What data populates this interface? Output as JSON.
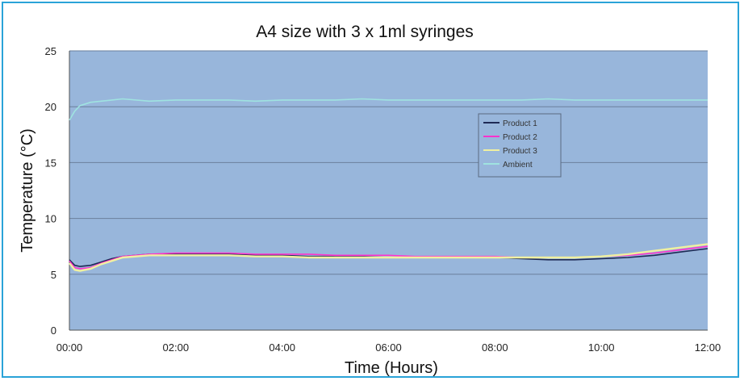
{
  "chart_data": {
    "type": "line",
    "title": "A4 size with 3 x 1ml syringes",
    "xlabel": "Time (Hours)",
    "ylabel": "Temperature (°C)",
    "ylim": [
      0,
      25
    ],
    "xlim": [
      0,
      12
    ],
    "y_ticks": [
      0,
      5,
      10,
      15,
      20,
      25
    ],
    "x_ticks": [
      0,
      2,
      4,
      6,
      8,
      10,
      12
    ],
    "x_tick_labels": [
      "00:00",
      "02:00",
      "04:00",
      "06:00",
      "08:00",
      "10:00",
      "12:00"
    ],
    "grid": "horizontal",
    "plot_background": "#98b6db",
    "legend_position": "center-right",
    "x": [
      0.0,
      0.1,
      0.2,
      0.4,
      0.6,
      0.8,
      1.0,
      1.5,
      2.0,
      2.5,
      3.0,
      3.5,
      4.0,
      4.5,
      5.0,
      5.5,
      6.0,
      6.5,
      7.0,
      7.5,
      8.0,
      8.5,
      9.0,
      9.5,
      10.0,
      10.5,
      11.0,
      11.5,
      12.0
    ],
    "series": [
      {
        "name": "Product 1",
        "color": "#1f2a55",
        "values": [
          6.3,
          5.8,
          5.7,
          5.8,
          6.1,
          6.4,
          6.6,
          6.8,
          6.8,
          6.8,
          6.8,
          6.7,
          6.7,
          6.6,
          6.6,
          6.6,
          6.5,
          6.5,
          6.5,
          6.5,
          6.5,
          6.4,
          6.3,
          6.3,
          6.4,
          6.5,
          6.7,
          7.0,
          7.3
        ]
      },
      {
        "name": "Product 2",
        "color": "#ff33cc",
        "values": [
          6.2,
          5.6,
          5.5,
          5.6,
          6.0,
          6.3,
          6.6,
          6.8,
          6.9,
          6.9,
          6.9,
          6.8,
          6.8,
          6.8,
          6.7,
          6.7,
          6.7,
          6.6,
          6.6,
          6.6,
          6.6,
          6.5,
          6.5,
          6.5,
          6.6,
          6.7,
          6.9,
          7.2,
          7.5
        ]
      },
      {
        "name": "Product 3",
        "color": "#f0f0a0",
        "values": [
          6.0,
          5.4,
          5.3,
          5.5,
          5.9,
          6.2,
          6.5,
          6.7,
          6.7,
          6.7,
          6.7,
          6.6,
          6.6,
          6.5,
          6.5,
          6.5,
          6.5,
          6.5,
          6.5,
          6.5,
          6.5,
          6.5,
          6.5,
          6.5,
          6.6,
          6.8,
          7.1,
          7.4,
          7.7
        ]
      },
      {
        "name": "Ambient",
        "color": "#9fe3e0",
        "values": [
          18.8,
          19.6,
          20.1,
          20.4,
          20.5,
          20.6,
          20.7,
          20.5,
          20.6,
          20.6,
          20.6,
          20.5,
          20.6,
          20.6,
          20.6,
          20.7,
          20.6,
          20.6,
          20.6,
          20.6,
          20.6,
          20.6,
          20.7,
          20.6,
          20.6,
          20.6,
          20.6,
          20.6,
          20.6
        ]
      }
    ]
  }
}
